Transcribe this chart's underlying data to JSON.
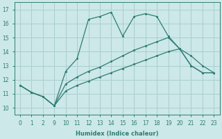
{
  "xlabel": "Humidex (Indice chaleur)",
  "bg_color": "#cce8e8",
  "grid_color": "#aacece",
  "line_color": "#2e7d72",
  "xlim": [
    -0.5,
    17.5
  ],
  "ylim": [
    9.5,
    17.5
  ],
  "xtick_positions": [
    0,
    1,
    2,
    3,
    4,
    5,
    6,
    7,
    8,
    9,
    10,
    11,
    12,
    13,
    14,
    15,
    16,
    17
  ],
  "xtick_labels": [
    "0",
    "1",
    "2",
    "9",
    "10",
    "11",
    "12",
    "13",
    "14",
    "15",
    "16",
    "17",
    "18",
    "19",
    "20",
    "21",
    "22",
    "23"
  ],
  "yticks": [
    10,
    11,
    12,
    13,
    14,
    15,
    16,
    17
  ],
  "line1_x": [
    0,
    1,
    2,
    3,
    4,
    5,
    6,
    7,
    8,
    9,
    10,
    11,
    12,
    13,
    14,
    15,
    16,
    17
  ],
  "line1_y": [
    11.6,
    11.1,
    10.8,
    10.15,
    12.6,
    13.5,
    16.3,
    16.5,
    16.8,
    15.1,
    16.5,
    16.7,
    16.5,
    15.1,
    14.2,
    13.7,
    13.0,
    12.5
  ],
  "line2_x": [
    0,
    1,
    2,
    3,
    4,
    5,
    6,
    7,
    8,
    9,
    10,
    11,
    12,
    13,
    14,
    15,
    16,
    17
  ],
  "line2_y": [
    11.6,
    11.1,
    10.8,
    10.15,
    11.7,
    12.2,
    12.6,
    12.9,
    13.3,
    13.7,
    14.1,
    14.4,
    14.7,
    15.0,
    14.2,
    13.0,
    12.5,
    12.5
  ],
  "line3_x": [
    0,
    1,
    2,
    3,
    4,
    5,
    6,
    7,
    8,
    9,
    10,
    11,
    12,
    13,
    14,
    15,
    16,
    17
  ],
  "line3_y": [
    11.6,
    11.1,
    10.8,
    10.15,
    11.2,
    11.6,
    11.9,
    12.2,
    12.5,
    12.8,
    13.1,
    13.4,
    13.7,
    14.0,
    14.2,
    13.0,
    12.5,
    12.5
  ]
}
